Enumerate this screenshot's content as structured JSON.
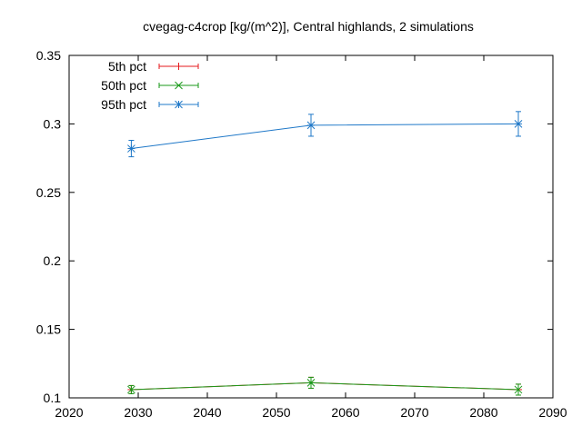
{
  "chart_data": {
    "type": "line",
    "title": "cvegag-c4crop [kg/(m^2)], Central highlands, 2 simulations",
    "xlabel": "",
    "ylabel": "",
    "xlim": [
      2020,
      2090
    ],
    "ylim": [
      0.1,
      0.35
    ],
    "xticks": [
      2020,
      2030,
      2040,
      2050,
      2060,
      2070,
      2080,
      2090
    ],
    "yticks": [
      0.1,
      0.15,
      0.2,
      0.25,
      0.3,
      0.35
    ],
    "xtick_labels": [
      "2020",
      "2030",
      "2040",
      "2050",
      "2060",
      "2070",
      "2080",
      "2090"
    ],
    "ytick_labels": [
      "0.1",
      "0.15",
      "0.2",
      "0.25",
      "0.3",
      "0.35"
    ],
    "grid": false,
    "legend_position": "top-left",
    "x": [
      2029,
      2055,
      2085
    ],
    "series": [
      {
        "name": "5th pct",
        "color": "#e41a1c",
        "marker": "plus",
        "values": [
          0.106,
          0.111,
          0.106
        ],
        "err_low": [
          0.103,
          0.107,
          0.102
        ],
        "err_high": [
          0.109,
          0.115,
          0.11
        ]
      },
      {
        "name": "50th pct",
        "color": "#1a9a1a",
        "marker": "cross",
        "values": [
          0.106,
          0.111,
          0.106
        ],
        "err_low": [
          0.103,
          0.107,
          0.102
        ],
        "err_high": [
          0.109,
          0.115,
          0.11
        ]
      },
      {
        "name": "95th pct",
        "color": "#1f78c8",
        "marker": "star",
        "values": [
          0.282,
          0.299,
          0.3
        ],
        "err_low": [
          0.276,
          0.291,
          0.291
        ],
        "err_high": [
          0.288,
          0.307,
          0.309
        ]
      }
    ]
  }
}
